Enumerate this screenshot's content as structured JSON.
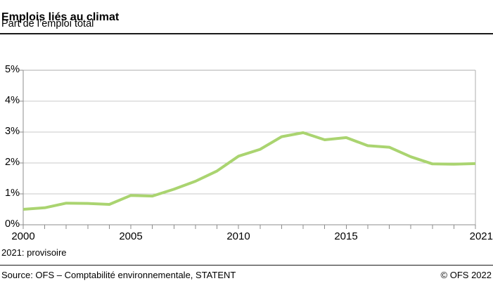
{
  "header": {
    "title": "Emplois liés au climat",
    "subtitle": "Part de l’emploi total"
  },
  "chart_data": {
    "type": "line",
    "title": "Emplois liés au climat",
    "subtitle": "Part de l’emploi total",
    "unit": "%",
    "x": [
      2000,
      2001,
      2002,
      2003,
      2004,
      2005,
      2006,
      2007,
      2008,
      2009,
      2010,
      2011,
      2012,
      2013,
      2014,
      2015,
      2016,
      2017,
      2018,
      2019,
      2020,
      2021
    ],
    "values": [
      0.5,
      0.55,
      0.7,
      0.69,
      0.66,
      0.95,
      0.93,
      1.15,
      1.41,
      1.74,
      2.22,
      2.44,
      2.85,
      2.98,
      2.75,
      2.82,
      2.56,
      2.51,
      2.2,
      1.97,
      1.96,
      1.98
    ],
    "ylim": [
      0,
      5
    ],
    "y_tick_labels": [
      "5%",
      "4%",
      "3%",
      "2%",
      "1%",
      "0%"
    ],
    "x_tick_labels": [
      "2000",
      "2005",
      "2010",
      "2015",
      "2021"
    ],
    "x_tick_years": [
      2000,
      2005,
      2010,
      2015,
      2021
    ],
    "grid": "horizontal",
    "legend": "none",
    "colors": {
      "line": "#aad470",
      "grid": "#c9c9c9",
      "border": "#aeaeae",
      "axis": "#8c8c8c"
    }
  },
  "note": "2021: provisoire",
  "footer": {
    "source": "Source: OFS – Comptabilité environnementale, STATENT",
    "copyright": "© OFS 2022"
  }
}
